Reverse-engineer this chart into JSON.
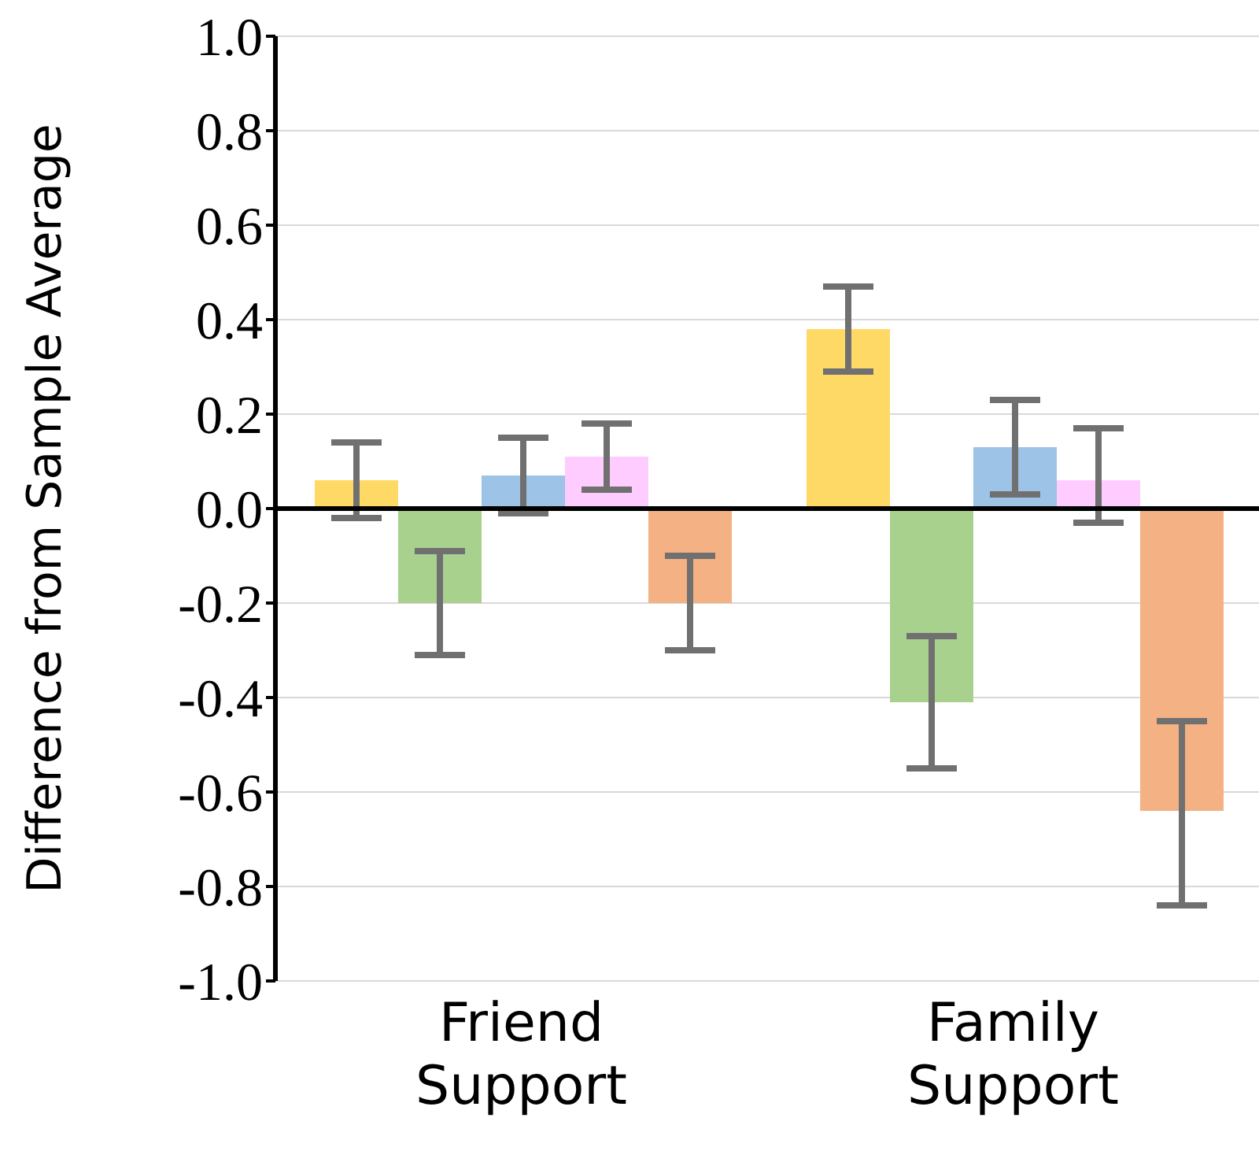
{
  "chart_data": {
    "type": "bar",
    "ylabel": "Difference from Sample Average",
    "categories": [
      "Friend Support",
      "Family Support"
    ],
    "series": [
      {
        "color": "#ffd966",
        "values": [
          0.06,
          0.38
        ],
        "errors": [
          [
            -0.02,
            0.14
          ],
          [
            0.29,
            0.47
          ]
        ]
      },
      {
        "color": "#a9d18e",
        "values": [
          -0.2,
          -0.41
        ],
        "errors": [
          [
            -0.31,
            -0.09
          ],
          [
            -0.55,
            -0.27
          ]
        ]
      },
      {
        "color": "#9dc3e6",
        "values": [
          0.07,
          0.13
        ],
        "errors": [
          [
            -0.01,
            0.15
          ],
          [
            0.03,
            0.23
          ]
        ]
      },
      {
        "color": "#ffccff",
        "values": [
          0.11,
          0.06
        ],
        "errors": [
          [
            0.04,
            0.18
          ],
          [
            -0.03,
            0.17
          ]
        ]
      },
      {
        "color": "#f4b183",
        "values": [
          -0.2,
          -0.64
        ],
        "errors": [
          [
            -0.3,
            -0.1
          ],
          [
            -0.84,
            -0.45
          ]
        ]
      }
    ],
    "ylim": [
      -1,
      1
    ],
    "yticks": [
      {
        "value": -1,
        "label": "-1.0"
      },
      -0.8,
      -0.6,
      -0.4,
      -0.2,
      {
        "value": 0,
        "label": "0.0"
      },
      0.2,
      0.4,
      0.6,
      0.8,
      {
        "value": 1,
        "label": "1.0"
      }
    ],
    "grid": "y",
    "ref_lines": [
      {
        "axis": "y",
        "value": 0,
        "color": "#000000"
      }
    ]
  }
}
